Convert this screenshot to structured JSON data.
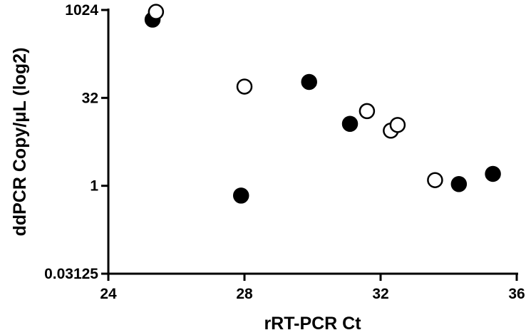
{
  "chart_data": {
    "type": "scatter",
    "xlabel": "rRT-PCR Ct",
    "ylabel": "ddPCR Copy/μL (log2)",
    "x_range": [
      24,
      36
    ],
    "x_ticks": [
      "24",
      "28",
      "32",
      "36"
    ],
    "y_scale": "log2",
    "y_range": [
      0.03125,
      1024
    ],
    "y_ticks": [
      "0.03125",
      "1",
      "32",
      "1024"
    ],
    "grid": false,
    "legend": "none",
    "series": [
      {
        "marker": "filled-circle",
        "color": "#000000",
        "points": [
          {
            "x": 25.3,
            "y": 700
          },
          {
            "x": 27.9,
            "y": 0.68
          },
          {
            "x": 29.9,
            "y": 60
          },
          {
            "x": 31.1,
            "y": 11.5
          },
          {
            "x": 34.3,
            "y": 1.07
          },
          {
            "x": 35.3,
            "y": 1.6
          }
        ]
      },
      {
        "marker": "open-circle",
        "color": "#000000",
        "points": [
          {
            "x": 25.4,
            "y": 950
          },
          {
            "x": 28.0,
            "y": 50
          },
          {
            "x": 31.6,
            "y": 19
          },
          {
            "x": 32.3,
            "y": 8.8
          },
          {
            "x": 32.5,
            "y": 11
          },
          {
            "x": 33.6,
            "y": 1.25
          }
        ]
      }
    ]
  }
}
